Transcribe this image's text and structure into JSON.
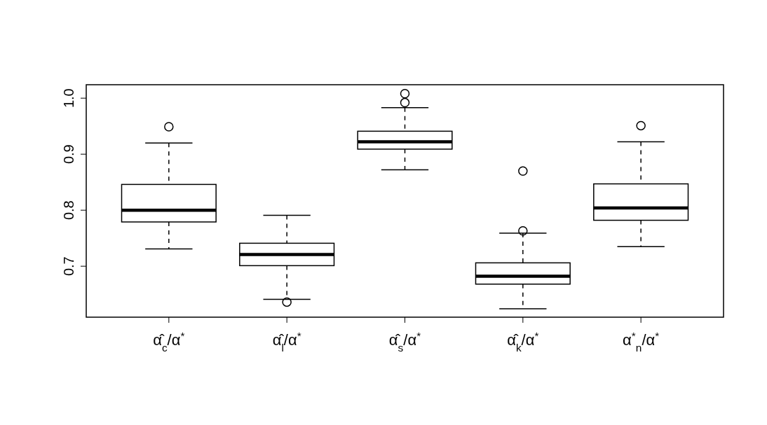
{
  "chart_data": {
    "type": "box",
    "categories": [
      "α̂$_{c}$/α$^{*}$",
      "α̂$_{l}$/α$^{*}$",
      "α̂$_{s}$/α$^{*}$",
      "α̂$_{k}$/α$^{*}$",
      "α$^{*}$$_{n}$/α$^{*}$"
    ],
    "boxes": [
      {
        "low": 0.731,
        "q1": 0.779,
        "median": 0.8,
        "q3": 0.846,
        "high": 0.92,
        "outliers": [
          0.949
        ]
      },
      {
        "low": 0.641,
        "q1": 0.701,
        "median": 0.721,
        "q3": 0.741,
        "high": 0.791,
        "outliers": [
          0.636
        ]
      },
      {
        "low": 0.872,
        "q1": 0.909,
        "median": 0.922,
        "q3": 0.941,
        "high": 0.983,
        "outliers": [
          1.008,
          0.992
        ]
      },
      {
        "low": 0.624,
        "q1": 0.668,
        "median": 0.682,
        "q3": 0.706,
        "high": 0.759,
        "outliers": [
          0.87,
          0.763
        ]
      },
      {
        "low": 0.735,
        "q1": 0.782,
        "median": 0.804,
        "q3": 0.847,
        "high": 0.922,
        "outliers": [
          0.951
        ]
      }
    ],
    "ylim": [
      0.609,
      1.024
    ],
    "yticks": [
      0.7,
      0.8,
      0.9,
      {
        "value": 1,
        "label": "1.0"
      }
    ],
    "grid": false
  }
}
